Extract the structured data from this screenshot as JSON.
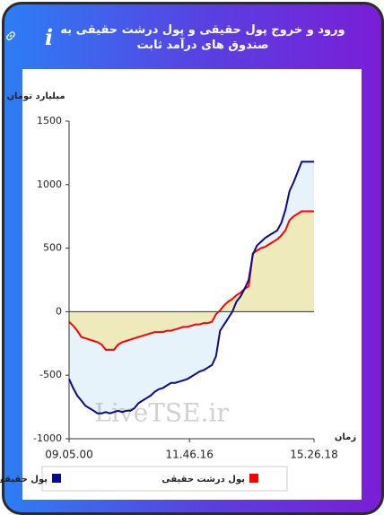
{
  "chart_data": {
    "type": "line",
    "title": "ورود و خروج پول حقیقی و پول درشت حقیقی به صندوق های درآمد ثابت",
    "y_label": "میلیارد تومان",
    "x_label": "زمان",
    "watermark": "LiveTSE.ir",
    "x": [
      0,
      1,
      2,
      3,
      4,
      5,
      6,
      7,
      8,
      9,
      10,
      11,
      12,
      13,
      14,
      15,
      16,
      17,
      18,
      19,
      20,
      21,
      22,
      23,
      24,
      25,
      26,
      27,
      28,
      29,
      30,
      31,
      32,
      33,
      34,
      35,
      36,
      37,
      38,
      39,
      40,
      41,
      42,
      43,
      44,
      45,
      46,
      47,
      48,
      49,
      50,
      51,
      52,
      53,
      54,
      55,
      56,
      57,
      58,
      59,
      60
    ],
    "xlim": [
      0,
      60
    ],
    "xticks": [
      {
        "value": 0,
        "label": "09.05.00"
      },
      {
        "value": 29.5,
        "label": "11.46.16"
      },
      {
        "value": 60,
        "label": "15.26.18"
      }
    ],
    "ylim": [
      -1000,
      1500
    ],
    "yticks": [
      -1000,
      -500,
      0,
      500,
      1000,
      1500
    ],
    "series": [
      {
        "name": "پول حقیقی",
        "color": "#0a0a8c",
        "fill": "#e6f3fa",
        "values": [
          -530,
          -600,
          -660,
          -700,
          -740,
          -760,
          -780,
          -800,
          -800,
          -790,
          -800,
          -790,
          -780,
          -790,
          -780,
          -780,
          -760,
          -720,
          -700,
          -680,
          -660,
          -630,
          -610,
          -600,
          -580,
          -560,
          -560,
          -550,
          -540,
          -530,
          -510,
          -490,
          -470,
          -460,
          -440,
          -420,
          -350,
          -150,
          -100,
          -50,
          0,
          80,
          120,
          180,
          250,
          450,
          520,
          550,
          580,
          600,
          620,
          640,
          700,
          800,
          950,
          1020,
          1100,
          1180,
          1180,
          1180,
          1180
        ]
      },
      {
        "name": "پول درشت حقیقی",
        "color": "#ff0000",
        "fill": "#eeeabb",
        "values": [
          -80,
          -110,
          -150,
          -200,
          -210,
          -220,
          -230,
          -240,
          -260,
          -300,
          -300,
          -300,
          -260,
          -240,
          -230,
          -220,
          -210,
          -200,
          -190,
          -180,
          -170,
          -160,
          -160,
          -160,
          -150,
          -150,
          -140,
          -130,
          -120,
          -120,
          -110,
          -100,
          -100,
          -90,
          -90,
          -80,
          -20,
          10,
          50,
          80,
          100,
          130,
          150,
          180,
          200,
          460,
          480,
          500,
          510,
          530,
          550,
          570,
          600,
          640,
          720,
          750,
          770,
          790,
          790,
          790,
          790
        ]
      }
    ]
  }
}
